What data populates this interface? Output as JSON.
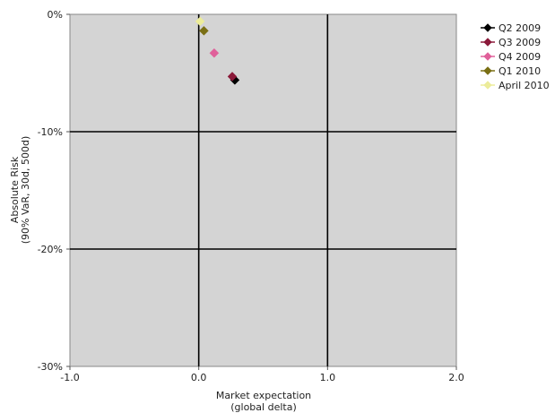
{
  "chart_data": {
    "type": "scatter",
    "xlim": [
      -1.0,
      2.0
    ],
    "ylim": [
      -30,
      0
    ],
    "x_ticks": [
      "-1.0",
      "0.0",
      "1.0",
      "2.0"
    ],
    "y_ticks": [
      "0%",
      "-10%",
      "-20%",
      "-30%"
    ],
    "xlabel": [
      "Market expectation",
      "(global delta)"
    ],
    "ylabel": [
      "Absolute Risk",
      "(90% VaR, 30d, 500d)"
    ],
    "grid": false,
    "plot_background": "#d4d4d4",
    "axes_color": "#000000",
    "legend_position": "right",
    "series": [
      {
        "name": "Q2 2009",
        "color": "#000000",
        "marker": "diamond",
        "points": [
          [
            0.28,
            -5.6
          ]
        ]
      },
      {
        "name": "Q3 2009",
        "color": "#8b1a3a",
        "marker": "diamond",
        "points": [
          [
            0.26,
            -5.3
          ]
        ]
      },
      {
        "name": "Q4 2009",
        "color": "#e0609a",
        "marker": "diamond",
        "points": [
          [
            0.12,
            -3.3
          ]
        ]
      },
      {
        "name": "Q1 2010",
        "color": "#7a6f14",
        "marker": "diamond",
        "points": [
          [
            0.04,
            -1.4
          ]
        ]
      },
      {
        "name": "April 2010",
        "color": "#ecec9a",
        "marker": "diamond",
        "points": [
          [
            0.01,
            -0.6
          ]
        ]
      }
    ]
  }
}
